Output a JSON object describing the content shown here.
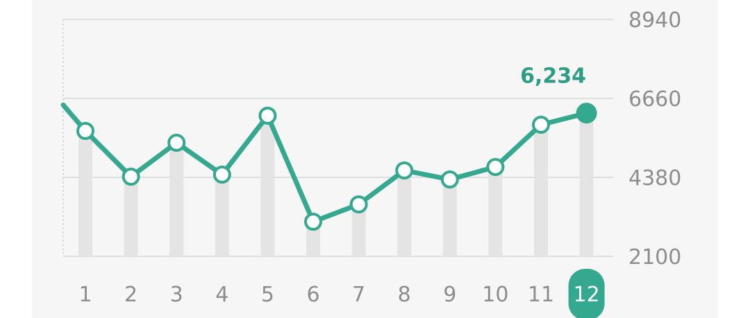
{
  "chart_data": {
    "type": "line",
    "categories": [
      "1",
      "2",
      "3",
      "4",
      "5",
      "6",
      "7",
      "8",
      "9",
      "10",
      "11",
      "12"
    ],
    "values": [
      5720,
      4400,
      5380,
      4460,
      6160,
      3100,
      3600,
      4580,
      4320,
      4680,
      5900,
      6234
    ],
    "line_start_value": 6470,
    "ylim": [
      2100,
      8940
    ],
    "yticks": [
      "8940",
      "6660",
      "4380",
      "2100"
    ],
    "selected_index": 11,
    "selected_label": "6,234",
    "colors": {
      "line": "#35a990",
      "bar": "#e4e4e4",
      "grid": "#dedede",
      "accent": "#35a990"
    },
    "grid": true
  }
}
